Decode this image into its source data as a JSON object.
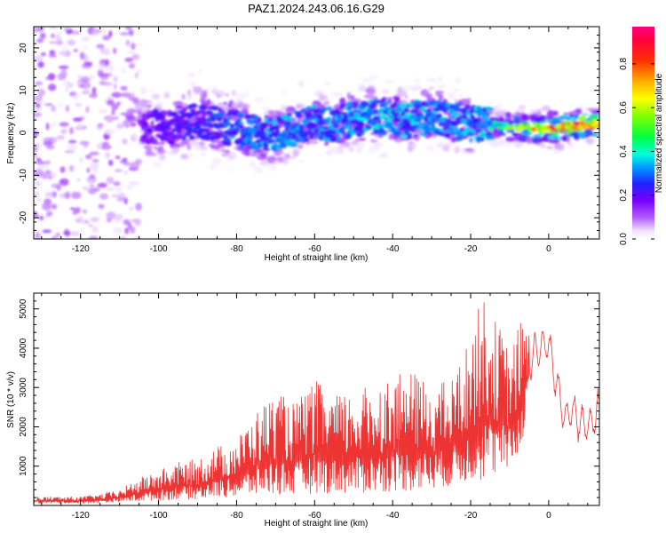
{
  "title": "PAZ1.2024.243.06.16.G29",
  "chart_data": [
    {
      "type": "heatmap",
      "xlabel": "Height of straight line (km)",
      "ylabel": "Frequency (Hz)",
      "xlim": [
        -132,
        13
      ],
      "ylim": [
        -25,
        25
      ],
      "xticks": [
        -120,
        -100,
        -80,
        -60,
        -40,
        -20,
        0
      ],
      "yticks": [
        -20,
        -10,
        0,
        10,
        20
      ],
      "colorbar": {
        "label": "Normalized spectral amplitude",
        "range": [
          0,
          0.97
        ],
        "ticks": [
          0.0,
          0.2,
          0.4,
          0.6,
          0.8
        ],
        "colormap": "rainbow (white → violet → blue → cyan → green → yellow → orange → red → magenta)"
      },
      "ridge_center_hz": [
        [
          -130,
          8
        ],
        [
          -120,
          5
        ],
        [
          -110,
          2
        ],
        [
          -100,
          1
        ],
        [
          -95,
          2
        ],
        [
          -90,
          3
        ],
        [
          -85,
          2
        ],
        [
          -80,
          1
        ],
        [
          -75,
          0
        ],
        [
          -70,
          -1
        ],
        [
          -65,
          1
        ],
        [
          -60,
          3
        ],
        [
          -55,
          2
        ],
        [
          -50,
          3
        ],
        [
          -45,
          4
        ],
        [
          -40,
          3
        ],
        [
          -35,
          3
        ],
        [
          -30,
          4
        ],
        [
          -25,
          3
        ],
        [
          -20,
          2
        ],
        [
          -15,
          2
        ],
        [
          -10,
          1.5
        ],
        [
          -5,
          1
        ],
        [
          0,
          1
        ],
        [
          5,
          1.5
        ],
        [
          10,
          2
        ],
        [
          13,
          2
        ]
      ],
      "peak_amplitude_by_x": [
        [
          -130,
          0.05
        ],
        [
          -120,
          0.08
        ],
        [
          -110,
          0.12
        ],
        [
          -100,
          0.22
        ],
        [
          -90,
          0.25
        ],
        [
          -80,
          0.3
        ],
        [
          -70,
          0.35
        ],
        [
          -60,
          0.32
        ],
        [
          -50,
          0.35
        ],
        [
          -40,
          0.38
        ],
        [
          -30,
          0.33
        ],
        [
          -20,
          0.35
        ],
        [
          -15,
          0.4
        ],
        [
          -10,
          0.55
        ],
        [
          -5,
          0.7
        ],
        [
          0,
          0.9
        ],
        [
          5,
          0.9
        ],
        [
          10,
          0.85
        ],
        [
          13,
          0.75
        ]
      ]
    },
    {
      "type": "line",
      "xlabel": "Height of straight line (km)",
      "ylabel": "SNR (10 * v/v)",
      "xlim": [
        -132,
        13
      ],
      "ylim": [
        0,
        5400
      ],
      "xticks": [
        -120,
        -100,
        -80,
        -60,
        -40,
        -20,
        0
      ],
      "yticks": [
        1000,
        2000,
        3000,
        4000,
        5000
      ],
      "series": [
        {
          "color": "#ee3333",
          "envelope": [
            {
              "x": -132,
              "lo": 50,
              "hi": 230
            },
            {
              "x": -120,
              "lo": 50,
              "hi": 230
            },
            {
              "x": -115,
              "lo": 60,
              "hi": 300
            },
            {
              "x": -110,
              "lo": 80,
              "hi": 400
            },
            {
              "x": -105,
              "lo": 100,
              "hi": 700
            },
            {
              "x": -100,
              "lo": 120,
              "hi": 900
            },
            {
              "x": -95,
              "lo": 150,
              "hi": 1100
            },
            {
              "x": -90,
              "lo": 150,
              "hi": 1200
            },
            {
              "x": -85,
              "lo": 200,
              "hi": 1500
            },
            {
              "x": -80,
              "lo": 200,
              "hi": 1700
            },
            {
              "x": -75,
              "lo": 250,
              "hi": 2400
            },
            {
              "x": -70,
              "lo": 250,
              "hi": 2900
            },
            {
              "x": -65,
              "lo": 250,
              "hi": 2600
            },
            {
              "x": -60,
              "lo": 300,
              "hi": 3200
            },
            {
              "x": -55,
              "lo": 300,
              "hi": 2800
            },
            {
              "x": -50,
              "lo": 300,
              "hi": 2900
            },
            {
              "x": -45,
              "lo": 300,
              "hi": 3100
            },
            {
              "x": -40,
              "lo": 350,
              "hi": 3300
            },
            {
              "x": -35,
              "lo": 350,
              "hi": 3400
            },
            {
              "x": -30,
              "lo": 400,
              "hi": 3100
            },
            {
              "x": -25,
              "lo": 500,
              "hi": 3200
            },
            {
              "x": -20,
              "lo": 600,
              "hi": 4300
            },
            {
              "x": -17,
              "lo": 600,
              "hi": 5400
            },
            {
              "x": -15,
              "lo": 700,
              "hi": 4900
            },
            {
              "x": -12,
              "lo": 800,
              "hi": 4500
            },
            {
              "x": -10,
              "lo": 900,
              "hi": 3900
            },
            {
              "x": -7,
              "lo": 1400,
              "hi": 4800
            },
            {
              "x": -5,
              "lo": 3000,
              "hi": 4400
            },
            {
              "x": -2,
              "lo": 3500,
              "hi": 4500
            },
            {
              "x": 0,
              "lo": 3700,
              "hi": 4600
            },
            {
              "x": 2,
              "lo": 2500,
              "hi": 3700
            },
            {
              "x": 4,
              "lo": 1800,
              "hi": 2600
            },
            {
              "x": 6,
              "lo": 1900,
              "hi": 3000
            },
            {
              "x": 8,
              "lo": 1500,
              "hi": 2700
            },
            {
              "x": 10,
              "lo": 1600,
              "hi": 2400
            },
            {
              "x": 13,
              "lo": 1700,
              "hi": 3100
            }
          ]
        }
      ]
    }
  ]
}
